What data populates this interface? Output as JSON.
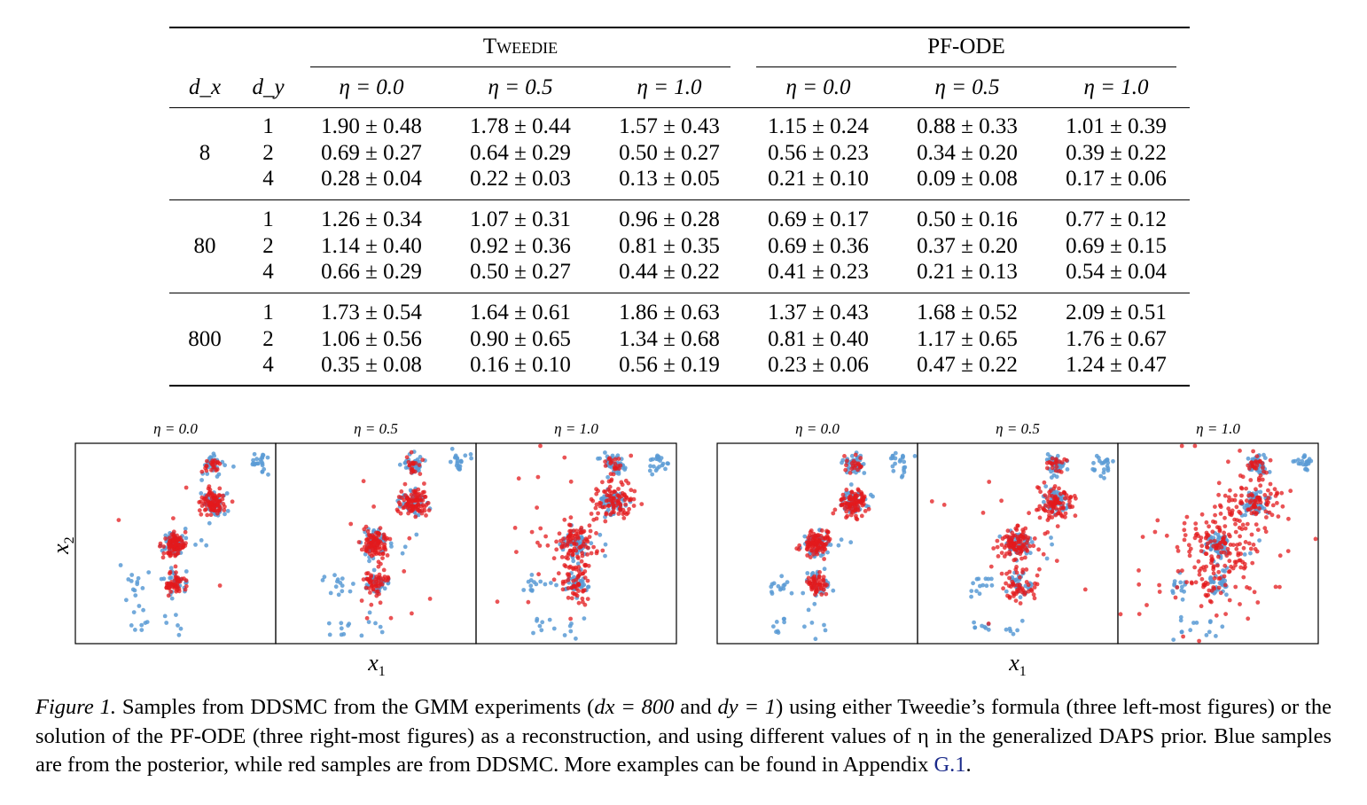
{
  "table": {
    "group_headers": [
      "Tweedie",
      "PF-ODE"
    ],
    "col_headers": [
      "d_x",
      "d_y",
      "η = 0.0",
      "η = 0.5",
      "η = 1.0",
      "η = 0.0",
      "η = 0.5",
      "η = 1.0"
    ],
    "groups": [
      {
        "dx": "8",
        "rows": [
          {
            "dy": "1",
            "vals": [
              "1.90 ± 0.48",
              "1.78 ± 0.44",
              "1.57 ± 0.43",
              "1.15 ± 0.24",
              "0.88 ± 0.33",
              "1.01 ± 0.39"
            ]
          },
          {
            "dy": "2",
            "vals": [
              "0.69 ± 0.27",
              "0.64 ± 0.29",
              "0.50 ± 0.27",
              "0.56 ± 0.23",
              "0.34 ± 0.20",
              "0.39 ± 0.22"
            ]
          },
          {
            "dy": "4",
            "vals": [
              "0.28 ± 0.04",
              "0.22 ± 0.03",
              "0.13 ± 0.05",
              "0.21 ± 0.10",
              "0.09 ± 0.08",
              "0.17 ± 0.06"
            ]
          }
        ]
      },
      {
        "dx": "80",
        "rows": [
          {
            "dy": "1",
            "vals": [
              "1.26 ± 0.34",
              "1.07 ± 0.31",
              "0.96 ± 0.28",
              "0.69 ± 0.17",
              "0.50 ± 0.16",
              "0.77 ± 0.12"
            ]
          },
          {
            "dy": "2",
            "vals": [
              "1.14 ± 0.40",
              "0.92 ± 0.36",
              "0.81 ± 0.35",
              "0.69 ± 0.36",
              "0.37 ± 0.20",
              "0.69 ± 0.15"
            ]
          },
          {
            "dy": "4",
            "vals": [
              "0.66 ± 0.29",
              "0.50 ± 0.27",
              "0.44 ± 0.22",
              "0.41 ± 0.23",
              "0.21 ± 0.13",
              "0.54 ± 0.04"
            ]
          }
        ]
      },
      {
        "dx": "800",
        "rows": [
          {
            "dy": "1",
            "vals": [
              "1.73 ± 0.54",
              "1.64 ± 0.61",
              "1.86 ± 0.63",
              "1.37 ± 0.43",
              "1.68 ± 0.52",
              "2.09 ± 0.51"
            ]
          },
          {
            "dy": "2",
            "vals": [
              "1.06 ± 0.56",
              "0.90 ± 0.65",
              "1.34 ± 0.68",
              "0.81 ± 0.40",
              "1.17 ± 0.65",
              "1.76 ± 0.67"
            ]
          },
          {
            "dy": "4",
            "vals": [
              "0.35 ± 0.08",
              "0.16 ± 0.10",
              "0.56 ± 0.19",
              "0.23 ± 0.06",
              "0.47 ± 0.22",
              "1.24 ± 0.47"
            ]
          }
        ]
      }
    ]
  },
  "figure": {
    "panel_titles": [
      "η = 0.0",
      "η = 0.5",
      "η = 1.0",
      "η = 0.0",
      "η = 0.5",
      "η = 1.0"
    ],
    "ylabel": "x2",
    "xlabel_left": "x1",
    "xlabel_right": "x1",
    "colors": {
      "posterior": "#5b9bd5",
      "ddsmc": "#e31a1c"
    }
  },
  "caption": {
    "label": "Figure 1.",
    "text_1": " Samples from DDSMC from the GMM experiments (",
    "math_1": "dx = 800",
    "text_2": " and ",
    "math_2": "dy = 1",
    "text_3": ") using either Tweedie’s formula (three left-most figures) or the solution of the PF-ODE (three right-most figures) as a reconstruction, and using different values of η in the generalized DAPS prior. Blue samples are from the posterior, while red samples are from DDSMC. More examples can be found in Appendix ",
    "link": "G.1",
    "text_4": "."
  }
}
